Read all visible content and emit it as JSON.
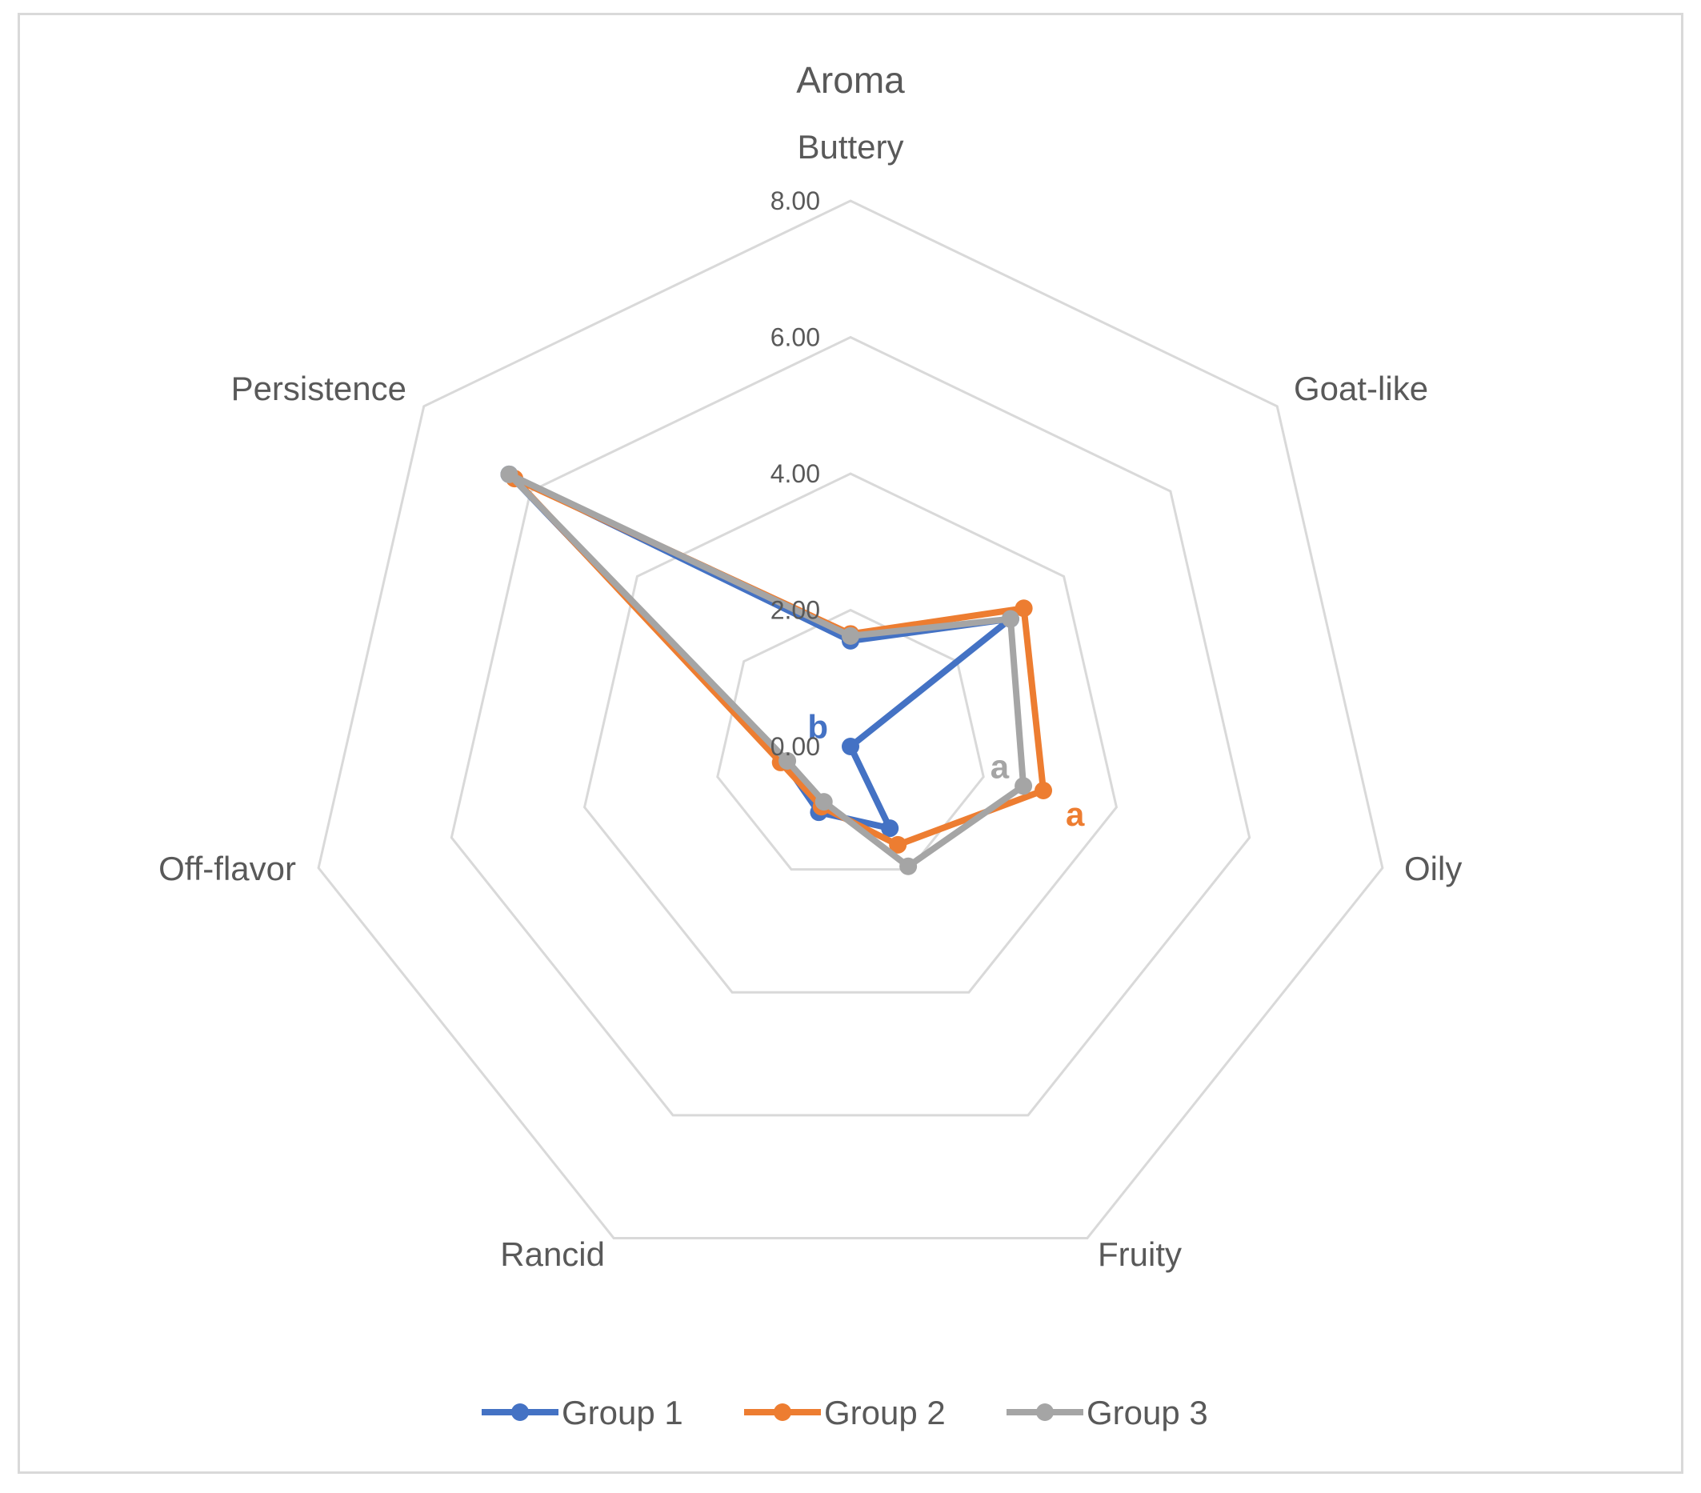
{
  "chart_data": {
    "type": "radar",
    "title": "Aroma",
    "categories": [
      "Buttery",
      "Goat-like",
      "Oily",
      "Fruity",
      "Rancid",
      "Off-flavor",
      "Persistence"
    ],
    "axis": {
      "min": 0,
      "max": 8,
      "step": 2,
      "tick_labels": [
        "0.00",
        "2.00",
        "4.00",
        "6.00",
        "8.00"
      ]
    },
    "grid": true,
    "legend_position": "bottom",
    "series": [
      {
        "name": "Group 1",
        "color": "#4472c4",
        "values": [
          1.55,
          3.0,
          0.0,
          1.33,
          1.07,
          1.0,
          6.4
        ]
      },
      {
        "name": "Group 2",
        "color": "#ed7d31",
        "values": [
          1.65,
          3.25,
          2.9,
          1.6,
          0.98,
          1.05,
          6.3
        ]
      },
      {
        "name": "Group 3",
        "color": "#a5a5a5",
        "values": [
          1.62,
          3.0,
          2.6,
          1.95,
          0.9,
          0.95,
          6.4
        ]
      }
    ],
    "annotations": [
      {
        "text": "b",
        "color": "#4472c4",
        "anchor": "group-1-oily"
      },
      {
        "text": "a",
        "color": "#a5a5a5",
        "anchor": "group-3-oily"
      },
      {
        "text": "a",
        "color": "#ed7d31",
        "anchor": "group-2-oily"
      }
    ]
  }
}
